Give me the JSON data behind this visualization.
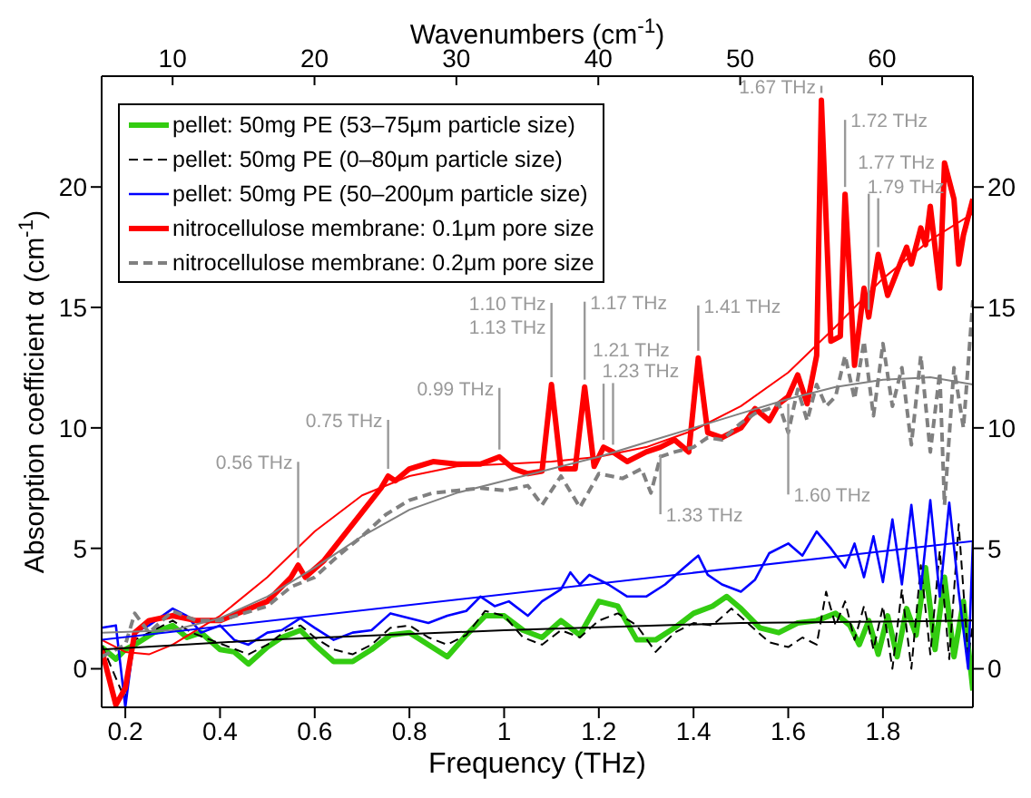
{
  "chart_data": {
    "type": "line",
    "xlabel": "Frequency (THz)",
    "ylabel": "Absorption coefficient α (cm$^{-1}$)",
    "x2label": "Wavenumbers (cm$^{-1}$)",
    "xlim": [
      0.15,
      1.99
    ],
    "xticks": [
      {
        "value": 0.2,
        "label": "0.2"
      },
      {
        "value": 0.4,
        "label": "0.4"
      },
      {
        "value": 0.6,
        "label": "0.6"
      },
      {
        "value": 0.8,
        "label": "0.8"
      },
      1,
      {
        "value": 1.2,
        "label": "1.2"
      },
      {
        "value": 1.4,
        "label": "1.4"
      },
      {
        "value": 1.6,
        "label": "1.6"
      },
      {
        "value": 1.8,
        "label": "1.8"
      }
    ],
    "x2lim": [
      5,
      66.4
    ],
    "x2ticks": [
      10,
      20,
      30,
      40,
      50,
      60
    ],
    "ylim": [
      -1.6,
      24.6
    ],
    "yticks": [
      0,
      5,
      10,
      15,
      20
    ],
    "y2lim": [
      -1.6,
      24.6
    ],
    "y2ticks": [
      0,
      5,
      10,
      15,
      20
    ],
    "legend": "top left",
    "marker": "none",
    "series": [
      {
        "name": "pellet: 50mg PE (53–75μm particle size)",
        "color": "#33cc11",
        "line_style": "solid",
        "x": [
          0.15,
          0.18,
          0.2,
          0.22,
          0.26,
          0.3,
          0.33,
          0.36,
          0.4,
          0.43,
          0.46,
          0.5,
          0.53,
          0.57,
          0.6,
          0.64,
          0.68,
          0.72,
          0.76,
          0.8,
          0.84,
          0.88,
          0.92,
          0.96,
          1.0,
          1.04,
          1.08,
          1.12,
          1.16,
          1.2,
          1.24,
          1.28,
          1.32,
          1.36,
          1.4,
          1.44,
          1.47,
          1.5,
          1.54,
          1.58,
          1.62,
          1.66,
          1.7,
          1.73,
          1.75,
          1.77,
          1.79,
          1.81,
          1.83,
          1.85,
          1.87,
          1.89,
          1.91,
          1.93,
          1.95,
          1.97,
          1.99
        ],
        "values": [
          0.9,
          0.4,
          0.8,
          1.0,
          1.5,
          1.8,
          1.3,
          1.5,
          0.8,
          0.7,
          0.2,
          0.9,
          1.3,
          1.6,
          1.0,
          0.3,
          0.3,
          0.8,
          1.4,
          1.5,
          1.0,
          0.5,
          1.4,
          2.2,
          2.2,
          1.6,
          1.3,
          2.0,
          1.4,
          2.8,
          2.6,
          1.2,
          1.2,
          1.7,
          2.3,
          2.6,
          3.0,
          2.5,
          1.7,
          1.5,
          1.9,
          2.0,
          2.3,
          1.8,
          1.0,
          2.0,
          0.6,
          2.2,
          0.5,
          2.5,
          1.4,
          4.2,
          0.8,
          3.8,
          0.5,
          2.8,
          -0.9
        ]
      },
      {
        "name": "pellet: 50mg PE (0–80μm particle size)",
        "color": "#000000",
        "line_style": "dashed",
        "x": [
          0.15,
          0.2,
          0.22,
          0.26,
          0.3,
          0.34,
          0.38,
          0.42,
          0.46,
          0.5,
          0.54,
          0.57,
          0.6,
          0.64,
          0.68,
          0.72,
          0.76,
          0.8,
          0.84,
          0.88,
          0.92,
          0.96,
          1.0,
          1.04,
          1.08,
          1.12,
          1.16,
          1.2,
          1.24,
          1.28,
          1.32,
          1.36,
          1.4,
          1.44,
          1.48,
          1.52,
          1.56,
          1.6,
          1.63,
          1.66,
          1.68,
          1.7,
          1.72,
          1.74,
          1.76,
          1.78,
          1.8,
          1.82,
          1.84,
          1.86,
          1.88,
          1.9,
          1.92,
          1.94,
          1.96,
          1.98,
          1.99
        ],
        "values": [
          1.0,
          -1.3,
          1.2,
          1.6,
          2.0,
          1.5,
          1.2,
          0.9,
          0.6,
          1.0,
          1.6,
          1.8,
          1.3,
          0.8,
          0.6,
          1.0,
          1.7,
          1.8,
          1.3,
          1.0,
          1.4,
          2.4,
          2.2,
          1.3,
          1.0,
          1.6,
          1.3,
          2.0,
          2.3,
          1.8,
          0.7,
          1.5,
          1.9,
          1.8,
          2.5,
          1.8,
          1.1,
          0.9,
          1.3,
          1.0,
          3.2,
          1.8,
          2.8,
          1.2,
          2.6,
          0.8,
          2.6,
          0.0,
          3.3,
          0.0,
          4.3,
          0.6,
          4.9,
          0.4,
          6.0,
          0.5,
          1.9
        ]
      },
      {
        "name": "pellet: 50mg PE (50–200μm particle size)",
        "color": "#0000ff",
        "line_style": "solid",
        "x": [
          0.15,
          0.18,
          0.2,
          0.22,
          0.25,
          0.3,
          0.33,
          0.36,
          0.4,
          0.43,
          0.46,
          0.5,
          0.53,
          0.57,
          0.6,
          0.64,
          0.68,
          0.72,
          0.76,
          0.8,
          0.84,
          0.88,
          0.92,
          0.95,
          0.98,
          1.01,
          1.05,
          1.08,
          1.12,
          1.14,
          1.16,
          1.18,
          1.22,
          1.26,
          1.3,
          1.34,
          1.38,
          1.41,
          1.43,
          1.46,
          1.5,
          1.53,
          1.56,
          1.6,
          1.63,
          1.66,
          1.69,
          1.72,
          1.74,
          1.76,
          1.78,
          1.8,
          1.82,
          1.84,
          1.86,
          1.88,
          1.9,
          1.92,
          1.94,
          1.96,
          1.98,
          1.99
        ],
        "values": [
          1.7,
          1.8,
          -1.6,
          1.5,
          1.8,
          2.5,
          2.2,
          1.5,
          1.8,
          1.2,
          1.0,
          1.5,
          1.6,
          2.1,
          1.7,
          1.2,
          1.5,
          1.6,
          2.3,
          2.1,
          1.9,
          2.2,
          2.4,
          3.0,
          2.6,
          2.8,
          2.2,
          2.8,
          3.3,
          4.0,
          3.5,
          3.9,
          3.5,
          3.0,
          3.0,
          3.5,
          4.2,
          4.7,
          3.9,
          3.5,
          3.2,
          3.7,
          4.8,
          5.2,
          4.7,
          5.7,
          5.0,
          4.2,
          5.2,
          3.8,
          5.5,
          3.6,
          6.2,
          3.5,
          6.8,
          3.3,
          7.0,
          3.0,
          6.9,
          3.2,
          0.0,
          5.3
        ]
      },
      {
        "name": "nitrocellulose membrane: 0.1μm pore size",
        "color": "#ff0000",
        "line_style": "solid",
        "x": [
          0.15,
          0.18,
          0.2,
          0.22,
          0.25,
          0.3,
          0.35,
          0.4,
          0.45,
          0.5,
          0.55,
          0.565,
          0.58,
          0.62,
          0.66,
          0.7,
          0.74,
          0.755,
          0.77,
          0.8,
          0.85,
          0.9,
          0.95,
          0.99,
          1.02,
          1.05,
          1.08,
          1.1,
          1.12,
          1.15,
          1.17,
          1.19,
          1.21,
          1.23,
          1.26,
          1.3,
          1.33,
          1.36,
          1.39,
          1.41,
          1.43,
          1.46,
          1.5,
          1.53,
          1.56,
          1.58,
          1.6,
          1.62,
          1.64,
          1.66,
          1.67,
          1.69,
          1.71,
          1.72,
          1.74,
          1.76,
          1.77,
          1.79,
          1.81,
          1.83,
          1.85,
          1.86,
          1.88,
          1.89,
          1.9,
          1.92,
          1.93,
          1.95,
          1.96,
          1.97,
          1.99
        ],
        "values": [
          0.8,
          -1.5,
          -0.8,
          1.5,
          2.0,
          2.2,
          2.0,
          2.0,
          2.4,
          2.8,
          3.8,
          4.3,
          3.8,
          4.5,
          5.5,
          6.5,
          7.5,
          8.0,
          7.8,
          8.3,
          8.6,
          8.5,
          8.5,
          8.8,
          8.3,
          8.1,
          8.2,
          11.8,
          8.3,
          8.3,
          11.7,
          8.4,
          9.2,
          9.0,
          8.6,
          9.0,
          9.2,
          9.5,
          9.0,
          12.9,
          9.8,
          9.6,
          10.0,
          10.8,
          10.3,
          11.0,
          11.3,
          12.2,
          11.0,
          13.0,
          23.6,
          13.6,
          13.8,
          19.7,
          12.6,
          15.8,
          14.6,
          17.2,
          15.5,
          16.5,
          17.5,
          16.8,
          18.3,
          17.6,
          19.2,
          15.8,
          21.0,
          19.5,
          16.8,
          18.0,
          19.5
        ]
      },
      {
        "name": "nitrocellulose membrane: 0.2μm pore size",
        "color": "#808080",
        "line_style": "dashed",
        "x": [
          0.15,
          0.2,
          0.22,
          0.25,
          0.3,
          0.35,
          0.4,
          0.45,
          0.5,
          0.55,
          0.6,
          0.65,
          0.7,
          0.75,
          0.8,
          0.85,
          0.9,
          0.95,
          1.0,
          1.05,
          1.08,
          1.12,
          1.16,
          1.2,
          1.25,
          1.29,
          1.31,
          1.33,
          1.36,
          1.4,
          1.43,
          1.46,
          1.5,
          1.53,
          1.56,
          1.58,
          1.6,
          1.62,
          1.64,
          1.66,
          1.68,
          1.7,
          1.72,
          1.74,
          1.76,
          1.78,
          1.8,
          1.82,
          1.84,
          1.86,
          1.88,
          1.9,
          1.92,
          1.93,
          1.95,
          1.97,
          1.99
        ],
        "values": [
          0.5,
          1.0,
          2.3,
          1.5,
          2.4,
          2.0,
          2.0,
          2.3,
          2.6,
          3.4,
          3.8,
          4.7,
          5.5,
          6.4,
          7.0,
          7.3,
          7.4,
          7.5,
          7.4,
          7.6,
          6.8,
          8.0,
          6.7,
          8.1,
          7.9,
          8.3,
          7.3,
          8.8,
          9.0,
          9.2,
          9.6,
          9.5,
          10.2,
          10.6,
          10.8,
          11.0,
          9.8,
          11.6,
          10.3,
          11.8,
          10.9,
          11.3,
          13.0,
          11.2,
          13.6,
          10.5,
          13.5,
          10.9,
          12.5,
          9.3,
          13.0,
          9.0,
          12.3,
          6.8,
          12.5,
          10.0,
          15.3
        ]
      },
      {
        "type": "line",
        "color": "#ff0000",
        "line_style": "solid",
        "x": [
          0.15,
          0.2,
          0.25,
          0.3,
          0.4,
          0.5,
          0.6,
          0.7,
          0.8,
          0.9,
          1.0,
          1.1,
          1.2,
          1.3,
          1.4,
          1.5,
          1.6,
          1.7,
          1.8,
          1.9,
          1.99
        ],
        "values": [
          1.2,
          0.7,
          0.6,
          1.0,
          2.2,
          3.8,
          5.7,
          7.2,
          8.0,
          8.4,
          8.5,
          8.6,
          8.8,
          9.2,
          9.9,
          10.9,
          12.3,
          14.2,
          16.2,
          17.8,
          18.9
        ]
      },
      {
        "type": "line",
        "color": "#808080",
        "line_style": "solid",
        "x": [
          0.15,
          0.3,
          0.4,
          0.5,
          0.6,
          0.7,
          0.8,
          0.9,
          1.0,
          1.1,
          1.2,
          1.3,
          1.4,
          1.5,
          1.6,
          1.7,
          1.8,
          1.9,
          1.99
        ],
        "values": [
          1.5,
          1.6,
          2.1,
          3.0,
          4.2,
          5.5,
          6.6,
          7.3,
          7.8,
          8.3,
          8.8,
          9.4,
          10.0,
          10.6,
          11.2,
          11.7,
          12.0,
          12.1,
          11.8
        ]
      },
      {
        "type": "line",
        "color": "#0000ff",
        "line_style": "solid",
        "x": [
          0.15,
          1.99
        ],
        "values": [
          1.2,
          5.3
        ]
      },
      {
        "type": "line",
        "color": "#000000",
        "line_style": "solid",
        "x": [
          0.15,
          0.5,
          1.0,
          1.5,
          1.99
        ],
        "values": [
          0.8,
          1.2,
          1.6,
          1.9,
          2.0
        ]
      }
    ],
    "annotations": [
      {
        "text": "0.56 THz",
        "x": 0.565,
        "y": 4.3
      },
      {
        "text": "0.75 THz",
        "x": 0.755,
        "y": 8.0
      },
      {
        "text": "0.99 THz",
        "x": 0.99,
        "y": 8.8
      },
      {
        "text": "1.10 THz",
        "x": 1.1,
        "y": 11.8
      },
      {
        "text": "1.13 THz",
        "x": 1.1,
        "y": 11.8
      },
      {
        "text": "1.17 THz",
        "x": 1.17,
        "y": 11.7
      },
      {
        "text": "1.21 THz",
        "x": 1.21,
        "y": 9.2
      },
      {
        "text": "1.23 THz",
        "x": 1.23,
        "y": 9.0
      },
      {
        "text": "1.41 THz",
        "x": 1.41,
        "y": 12.9
      },
      {
        "text": "1.33 THz",
        "x": 1.33,
        "y": 9.2
      },
      {
        "text": "1.60 THz",
        "x": 1.6,
        "y": 11.3
      },
      {
        "text": "1.67 THz",
        "x": 1.67,
        "y": 23.6
      },
      {
        "text": "1.72 THz",
        "x": 1.72,
        "y": 19.7
      },
      {
        "text": "1.77 THz",
        "x": 1.77,
        "y": 14.6
      },
      {
        "text": "1.79 THz",
        "x": 1.79,
        "y": 17.2
      }
    ]
  }
}
